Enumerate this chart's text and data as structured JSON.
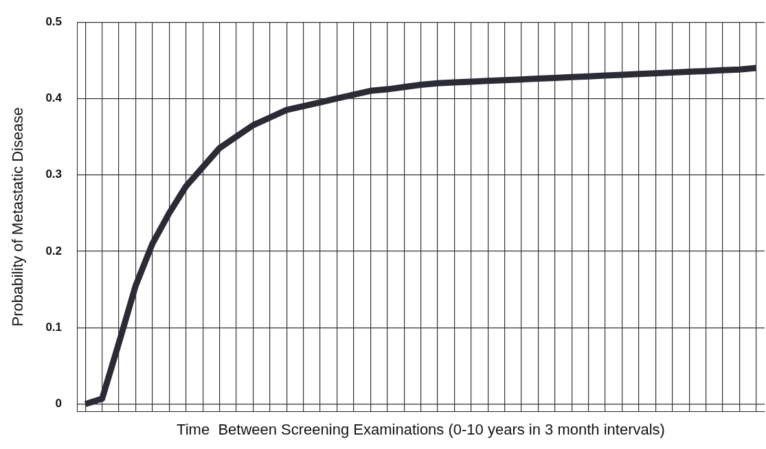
{
  "chart_data": {
    "type": "line",
    "xlabel": "Time  Between Screening Examinations (0-10 years in 3 month intervals)",
    "ylabel": "Probability of Metastatic Disease",
    "categories": [
      null,
      null,
      null,
      null,
      null,
      null,
      null,
      null,
      null,
      null,
      null,
      null,
      null,
      null,
      null,
      null,
      null,
      null,
      null,
      null,
      null,
      null,
      null,
      null,
      null,
      null,
      null,
      null,
      null,
      null,
      null,
      null,
      null,
      null,
      null,
      null,
      null,
      null,
      null,
      null,
      null
    ],
    "series": [
      {
        "color": "#2b2b36",
        "values": [
          0,
          0.007,
          0.08,
          0.155,
          0.21,
          0.25,
          0.285,
          0.31,
          0.335,
          0.35,
          0.365,
          0.375,
          0.385,
          0.39,
          0.395,
          0.4,
          0.405,
          0.41,
          0.412,
          0.415,
          0.418,
          0.42,
          0.421,
          0.422,
          0.423,
          0.424,
          0.425,
          0.426,
          0.427,
          0.428,
          0.429,
          0.43,
          0.431,
          0.432,
          0.433,
          0.434,
          0.435,
          0.436,
          0.437,
          0.438,
          0.44
        ]
      }
    ],
    "ylim": [
      -0.01,
      0.5
    ],
    "yticks": [
      0,
      0.1,
      0.2,
      0.3,
      0.4,
      0.5
    ],
    "grid": true,
    "legend": false,
    "marker": "none",
    "line_style": "solid",
    "tick_labels": "y"
  }
}
